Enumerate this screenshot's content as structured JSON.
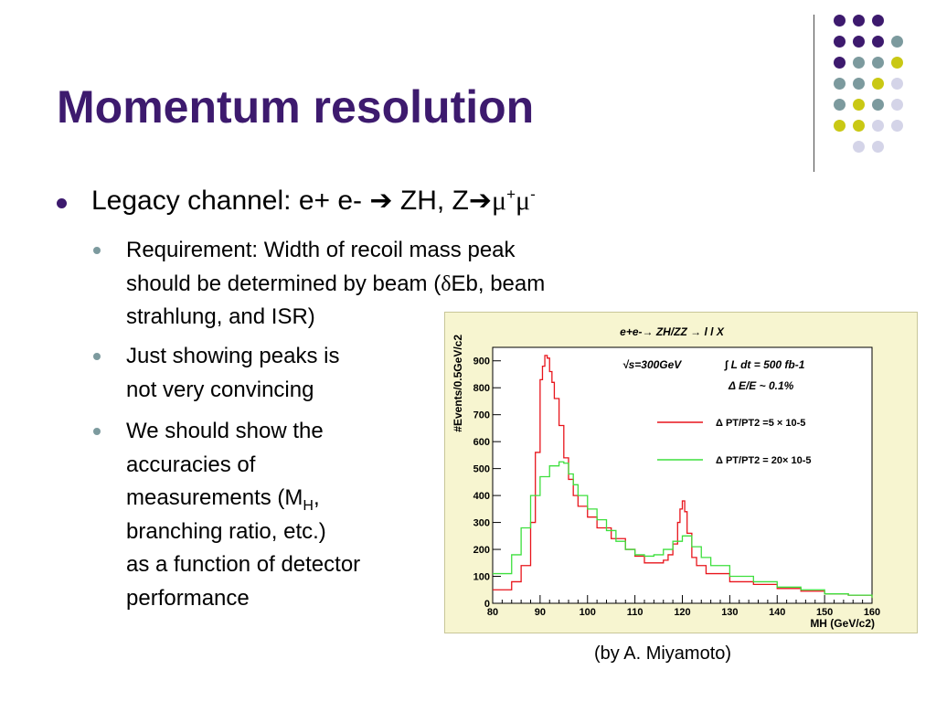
{
  "slide": {
    "title": "Momentum resolution",
    "bullet": {
      "prefix": "Legacy channel: e+ e- ",
      "arrow": "➔",
      "mid": " ZH, Z",
      "mu": "μ",
      "plus": "+",
      "minus": "-"
    },
    "sub1": {
      "line1": "Requirement: Width of recoil mass peak",
      "line2a": "should be determined by beam (",
      "delta": "δ",
      "line2b": "Eb, beam",
      "line3": "strahlung, and ISR)"
    },
    "sub2": {
      "line1": "Just showing peaks is",
      "line2": "not very convincing"
    },
    "sub3": {
      "line1": "We should show the",
      "line2": "accuracies of",
      "line3a": "measurements   (M",
      "line3sub": "H",
      "line3b": ",",
      "line4": "branching ratio, etc.)",
      "line5": "as a function of detector",
      "line6": "performance"
    },
    "caption": "(by A. Miyamoto)"
  },
  "theme": {
    "purple": "#3d1a6e",
    "teal": "#7c9a9e",
    "yellow": "#c9c814",
    "lavender": "#d4d4e8",
    "red_series": "#e8141b",
    "green_series": "#3ddf3d"
  },
  "chart_data": {
    "type": "line",
    "title": "e+e-→ ZH/ZZ → l l X",
    "annotations": [
      "√s=300GeV",
      "∫ L dt = 500 fb-1",
      "Δ E/E ~ 0.1%"
    ],
    "xlabel": "MH (GeV/c2)",
    "ylabel": "#Events/0.5GeV/c2",
    "xlim": [
      80,
      160
    ],
    "ylim": [
      0,
      950
    ],
    "xticks": [
      80,
      90,
      100,
      110,
      120,
      130,
      140,
      150,
      160
    ],
    "yticks": [
      0,
      100,
      200,
      300,
      400,
      500,
      600,
      700,
      800,
      900
    ],
    "grid": false,
    "legend_position": "top-right",
    "series": [
      {
        "name": "Δ PT/PT2 =5 × 10-5",
        "color": "#e8141b",
        "x": [
          80,
          84,
          86,
          88,
          89,
          90,
          90.5,
          91,
          91.5,
          92,
          92.5,
          93,
          94,
          95,
          96,
          97,
          98,
          100,
          102,
          105,
          108,
          110,
          112,
          114,
          116,
          117,
          118,
          119,
          119.5,
          120,
          120.5,
          121,
          122,
          123,
          125,
          130,
          135,
          140,
          145,
          150,
          155,
          160
        ],
        "y": [
          50,
          80,
          140,
          300,
          560,
          830,
          880,
          920,
          910,
          860,
          820,
          760,
          660,
          540,
          460,
          400,
          360,
          320,
          280,
          240,
          200,
          175,
          150,
          150,
          160,
          180,
          220,
          300,
          350,
          380,
          340,
          260,
          170,
          140,
          110,
          80,
          70,
          55,
          45,
          35,
          30,
          20
        ]
      },
      {
        "name": "Δ PT/PT2 = 20× 10-5",
        "color": "#3ddf3d",
        "x": [
          80,
          84,
          86,
          88,
          90,
          92,
          94,
          95,
          96,
          97,
          98,
          100,
          102,
          104,
          106,
          108,
          110,
          112,
          114,
          116,
          118,
          120,
          122,
          124,
          126,
          130,
          135,
          140,
          145,
          150,
          155,
          160
        ],
        "y": [
          110,
          180,
          280,
          400,
          470,
          510,
          525,
          520,
          480,
          440,
          400,
          350,
          310,
          270,
          230,
          200,
          180,
          175,
          180,
          200,
          230,
          250,
          210,
          170,
          140,
          100,
          80,
          60,
          50,
          35,
          30,
          20
        ]
      }
    ]
  }
}
